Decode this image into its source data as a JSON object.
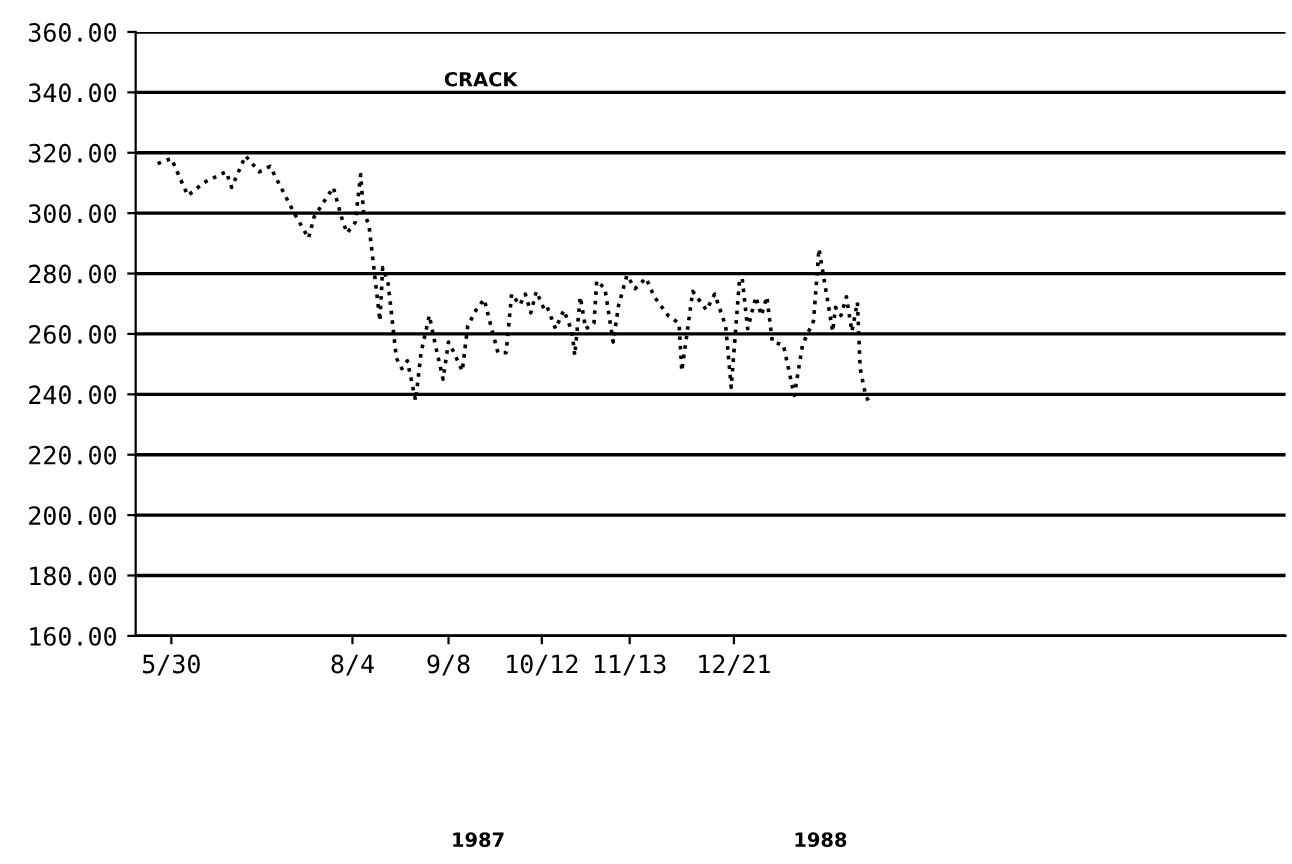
{
  "chart_data": {
    "type": "line",
    "title": "CRACK",
    "x": [
      "1987-05-25",
      "1987-05-30",
      "1987-06-05",
      "1987-06-11",
      "1987-06-19",
      "1987-06-21",
      "1987-06-26",
      "1987-07-01",
      "1987-07-05",
      "1987-07-14",
      "1987-07-19",
      "1987-07-21",
      "1987-07-28",
      "1987-07-31",
      "1987-08-02",
      "1987-08-05",
      "1987-08-07",
      "1987-08-08",
      "1987-08-10",
      "1987-08-12",
      "1987-08-14",
      "1987-08-15",
      "1987-08-17",
      "1987-08-20",
      "1987-08-22",
      "1987-08-24",
      "1987-08-27",
      "1987-08-29",
      "1987-09-01",
      "1987-09-03",
      "1987-09-06",
      "1987-09-08",
      "1987-09-10",
      "1987-09-13",
      "1987-09-15",
      "1987-09-18",
      "1987-09-21",
      "1987-09-23",
      "1987-09-26",
      "1987-09-29",
      "1987-10-01",
      "1987-10-04",
      "1987-10-06",
      "1987-10-08",
      "1987-10-10",
      "1987-10-13",
      "1987-10-14",
      "1987-10-17",
      "1987-10-20",
      "1987-10-23",
      "1987-10-24",
      "1987-10-26",
      "1987-10-28",
      "1987-10-31",
      "1987-11-01",
      "1987-11-04",
      "1987-11-07",
      "1987-11-09",
      "1987-11-12",
      "1987-11-15",
      "1987-11-19",
      "1987-11-22",
      "1987-11-27",
      "1987-12-01",
      "1987-12-02",
      "1987-12-06",
      "1987-12-11",
      "1987-12-14",
      "1987-12-18",
      "1987-12-20",
      "1987-12-23",
      "1987-12-24",
      "1987-12-26",
      "1987-12-29",
      "1987-12-31",
      "1988-01-02",
      "1988-01-04",
      "1988-01-08",
      "1988-01-12",
      "1988-01-15",
      "1988-01-19",
      "1988-01-21",
      "1988-01-26",
      "1988-01-27",
      "1988-01-29",
      "1988-01-31",
      "1988-02-02",
      "1988-02-04",
      "1988-02-05",
      "1988-02-07",
      "1988-02-08"
    ],
    "series": [
      {
        "color": "#000000",
        "values": [
          316.4,
          318.1,
          305.8,
          310.2,
          313.7,
          308.5,
          319,
          313.7,
          315.5,
          299.6,
          291.7,
          298.7,
          308.5,
          298.7,
          293.4,
          296.9,
          312.8,
          300.5,
          296.1,
          280.2,
          264.3,
          282,
          276.7,
          252,
          248.5,
          251.1,
          237.9,
          253.8,
          266.1,
          257.3,
          245,
          257.3,
          253.8,
          247.7,
          262.6,
          267.9,
          271.5,
          264.3,
          253.8,
          253.8,
          273.2,
          269.6,
          273.2,
          267,
          274.1,
          267.9,
          268.8,
          261.7,
          267.9,
          260.8,
          252.9,
          272.3,
          261.7,
          263.5,
          277.6,
          275,
          257.3,
          269.6,
          279.4,
          275,
          278.5,
          272.3,
          266.1,
          263.5,
          247.7,
          274.1,
          267.9,
          273.2,
          262.6,
          242.3,
          277.6,
          278.5,
          261.7,
          272.3,
          266.1,
          272.3,
          257.3,
          256.4,
          239.6,
          256.4,
          264.3,
          288.2,
          260.8,
          268.8,
          266.1,
          272.3,
          260.8,
          270.5,
          248.5,
          239.6,
          237.9
        ]
      }
    ],
    "xlim": [
      "1987-05-17",
      "1988-07-09"
    ],
    "xticks": [
      {
        "value": "1987-05-30",
        "label": "5/30"
      },
      {
        "value": "1987-08-04",
        "label": "8/4"
      },
      {
        "value": "1987-09-08",
        "label": "9/8"
      },
      {
        "value": "1987-10-12",
        "label": "10/12"
      },
      {
        "value": "1987-11-13",
        "label": "11/13"
      },
      {
        "value": "1987-12-21",
        "label": "12/21"
      }
    ],
    "ylim": [
      160,
      360
    ],
    "yticks": [
      {
        "value": 160,
        "label": "160.00"
      },
      {
        "value": 180,
        "label": "180.00"
      },
      {
        "value": 200,
        "label": "200.00"
      },
      {
        "value": 220,
        "label": "220.00"
      },
      {
        "value": 240,
        "label": "240.00"
      },
      {
        "value": 260,
        "label": "260.00"
      },
      {
        "value": 280,
        "label": "280.00"
      },
      {
        "value": 300,
        "label": "300.00"
      },
      {
        "value": 320,
        "label": "320.00"
      },
      {
        "value": 340,
        "label": "340.00"
      },
      {
        "value": 360,
        "label": "360.00"
      }
    ],
    "grid": "y",
    "line_style": "dotted",
    "annotations": [
      "1987",
      "1988"
    ]
  }
}
